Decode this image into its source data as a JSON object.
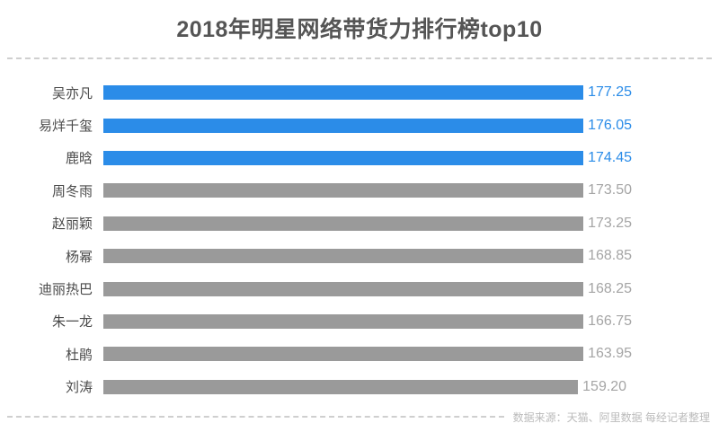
{
  "title": "2018年明星网络带货力排行榜top10",
  "footer": {
    "source_text": "数据来源：天猫、阿里数据 每经记者整理"
  },
  "colors": {
    "highlight_bar": "#2b8ce8",
    "highlight_value_text": "#2b8ce8",
    "normal_bar": "#9a9a9a",
    "normal_value_text": "#a5a5a5",
    "name_text": "#4a4a4a",
    "title_text": "#555555",
    "footer_text": "#bbbbbb",
    "divider": "#cfcfcf",
    "background": "#ffffff"
  },
  "chart_data": {
    "type": "bar",
    "orientation": "horizontal",
    "title": "2018年明星网络带货力排行榜top10",
    "categories": [
      "吴亦凡",
      "易烊千玺",
      "鹿晗",
      "周冬雨",
      "赵丽颖",
      "杨幂",
      "迪丽热巴",
      "朱一龙",
      "杜鹃",
      "刘涛"
    ],
    "values": [
      177.25,
      176.05,
      174.45,
      173.5,
      173.25,
      168.85,
      168.25,
      166.75,
      163.95,
      159.2
    ],
    "value_labels": [
      "177.25",
      "176.05",
      "174.45",
      "173.50",
      "173.25",
      "168.85",
      "168.25",
      "166.75",
      "163.95",
      "159.20"
    ],
    "highlight_top_n": 3,
    "xlim": [
      0,
      177.25
    ],
    "grid": false,
    "legend": null,
    "value_label_position": "end-of-bar",
    "source": "数据来源：天猫、阿里数据 每经记者整理"
  }
}
